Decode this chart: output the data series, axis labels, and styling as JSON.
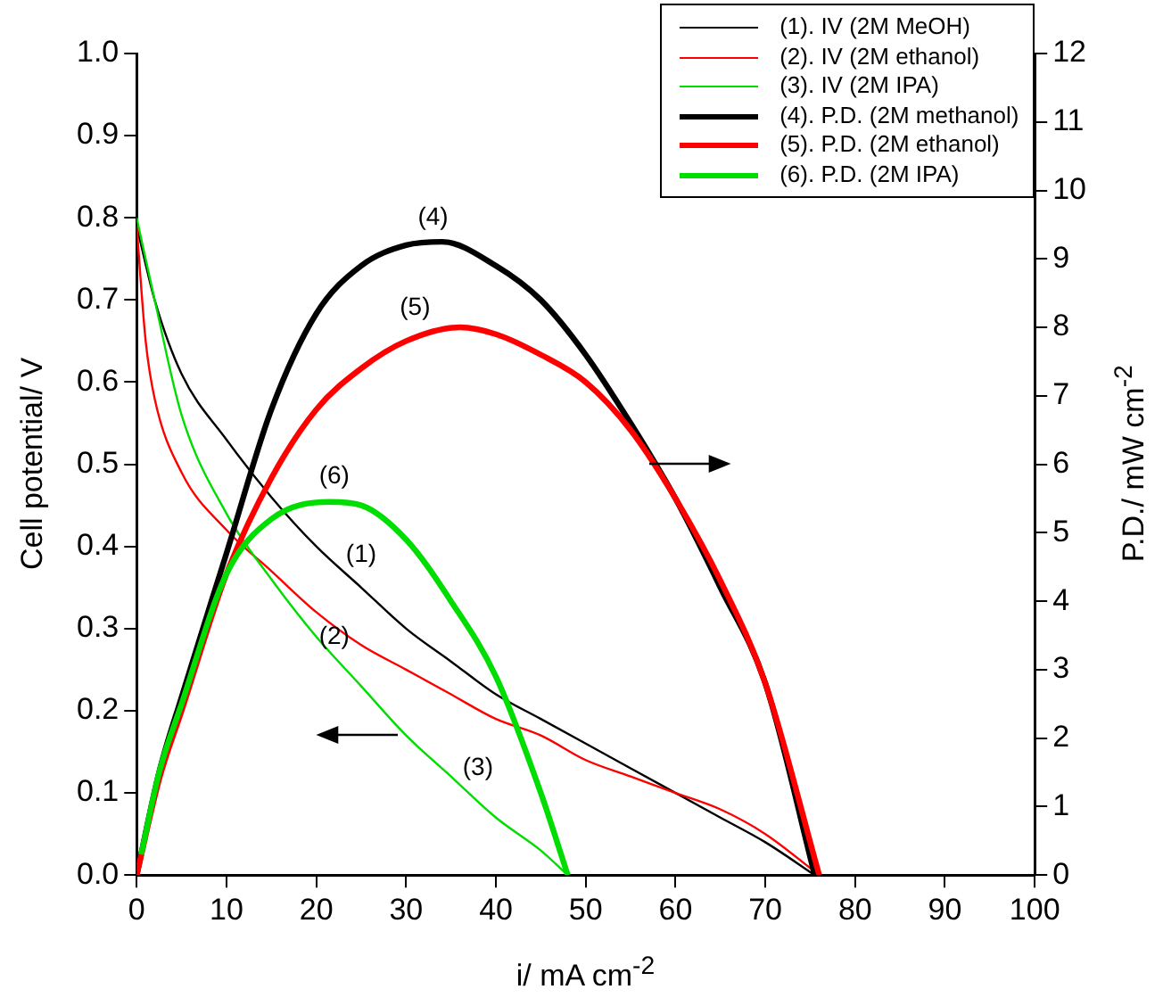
{
  "chart_data": {
    "type": "line",
    "xlabel": "i/ mA cm$^{-2}$",
    "ylabel": "Cell potential/ V",
    "y2label": "P.D./ mW cm$^{-2}$",
    "xlim": [
      0,
      100
    ],
    "xticks": [
      0,
      10,
      20,
      30,
      40,
      50,
      60,
      70,
      80,
      90,
      100
    ],
    "ylim": [
      0,
      1
    ],
    "yticks": [
      {
        "value": 0,
        "label": "0.0"
      },
      {
        "value": 0.1,
        "label": "0.1"
      },
      {
        "value": 0.2,
        "label": "0.2"
      },
      {
        "value": 0.3,
        "label": "0.3"
      },
      {
        "value": 0.4,
        "label": "0.4"
      },
      {
        "value": 0.5,
        "label": "0.5"
      },
      {
        "value": 0.6,
        "label": "0.6"
      },
      {
        "value": 0.7,
        "label": "0.7"
      },
      {
        "value": 0.8,
        "label": "0.8"
      },
      {
        "value": 0.9,
        "label": "0.9"
      },
      {
        "value": 1,
        "label": "1.0"
      }
    ],
    "y2lim": [
      0,
      12
    ],
    "y2ticks": [
      0,
      1,
      2,
      3,
      4,
      5,
      6,
      7,
      8,
      9,
      10,
      11,
      12
    ],
    "grid": false,
    "legend": "top right",
    "marker": "none",
    "series": [
      {
        "name": "(1). IV (2M MeOH)",
        "color": "#000000",
        "x": [
          0,
          2,
          5,
          10,
          15,
          20,
          25,
          30,
          35,
          40,
          45,
          50,
          55,
          60,
          65,
          70,
          75.5
        ],
        "values": [
          0.79,
          0.7,
          0.61,
          0.53,
          0.46,
          0.4,
          0.35,
          0.3,
          0.26,
          0.22,
          0.19,
          0.16,
          0.13,
          0.1,
          0.07,
          0.04,
          0
        ]
      },
      {
        "name": "(2). IV (2M ethanol)",
        "color": "#ff0000",
        "x": [
          0,
          1,
          2,
          5,
          10,
          15,
          20,
          25,
          30,
          35,
          40,
          45,
          50,
          55,
          60,
          65,
          70,
          76
        ],
        "values": [
          0.79,
          0.65,
          0.58,
          0.49,
          0.42,
          0.37,
          0.32,
          0.28,
          0.25,
          0.22,
          0.19,
          0.17,
          0.14,
          0.12,
          0.1,
          0.08,
          0.05,
          0
        ]
      },
      {
        "name": "(3). IV (2M IPA)",
        "color": "#00dd00",
        "x": [
          0,
          2,
          5,
          10,
          15,
          20,
          25,
          30,
          35,
          40,
          45,
          48
        ],
        "values": [
          0.8,
          0.7,
          0.56,
          0.44,
          0.36,
          0.29,
          0.23,
          0.17,
          0.12,
          0.07,
          0.03,
          0
        ]
      },
      {
        "name": "(4). P.D. (2M methanol)",
        "color": "#000000",
        "axis": "y2",
        "x": [
          0,
          2.5,
          5,
          10,
          15,
          20,
          25,
          30,
          34,
          40,
          45,
          50,
          55,
          60,
          65,
          70,
          75.5
        ],
        "values": [
          0,
          1.5,
          2.6,
          4.7,
          6.8,
          8.2,
          8.9,
          9.2,
          9.25,
          8.9,
          8.4,
          7.6,
          6.6,
          5.5,
          4.2,
          2.8,
          0
        ]
      },
      {
        "name": "(5). P.D. (2M ethanol)",
        "color": "#ff0000",
        "axis": "y2",
        "x": [
          0,
          2.5,
          5,
          10,
          15,
          20,
          25,
          30,
          36,
          40,
          45,
          50,
          55,
          60,
          65,
          70,
          76
        ],
        "values": [
          0,
          1.4,
          2.4,
          4.4,
          5.8,
          6.8,
          7.4,
          7.8,
          8,
          7.9,
          7.6,
          7.2,
          6.5,
          5.5,
          4.3,
          2.8,
          0
        ]
      },
      {
        "name": "(6). P.D. (2M IPA)",
        "color": "#00dd00",
        "axis": "y2",
        "x": [
          0.5,
          2.5,
          5,
          10,
          15,
          21.5,
          25,
          30,
          35,
          40,
          45,
          48
        ],
        "values": [
          0.3,
          1.5,
          2.5,
          4.4,
          5.2,
          5.45,
          5.4,
          4.9,
          4,
          2.9,
          1.2,
          0
        ]
      }
    ],
    "annotations": [
      "(4)",
      "(5)",
      "(6)",
      "(1)",
      "(2)",
      "(3)"
    ]
  }
}
